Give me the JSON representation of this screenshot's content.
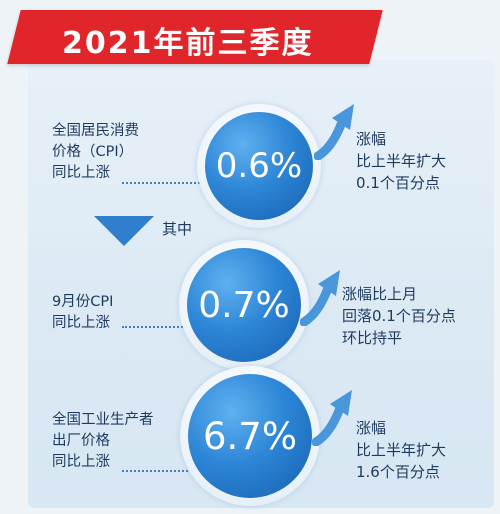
{
  "title": "2021年前三季度",
  "sections": [
    {
      "label_lines": [
        "全国居民消费",
        "价格（CPI）",
        "同比上涨"
      ],
      "value": "0.6%",
      "note_lines": [
        "涨幅",
        "比上半年扩大",
        "0.1个百分点"
      ]
    },
    {
      "label_lines": [
        "9月份CPI",
        "同比上涨"
      ],
      "value": "0.7%",
      "note_lines": [
        "涨幅比上月",
        "回落0.1个百分点",
        "环比持平"
      ]
    },
    {
      "label_lines": [
        "全国工业生产者",
        "出厂价格",
        "同比上涨"
      ],
      "value": "6.7%",
      "note_lines": [
        "涨幅",
        "比上半年扩大",
        "1.6个百分点"
      ]
    }
  ],
  "divider_label": "其中",
  "colors": {
    "banner": "#e0262b",
    "circle": "#2d86d6",
    "arrow": "#4a96db",
    "text": "#1f3a5f"
  }
}
